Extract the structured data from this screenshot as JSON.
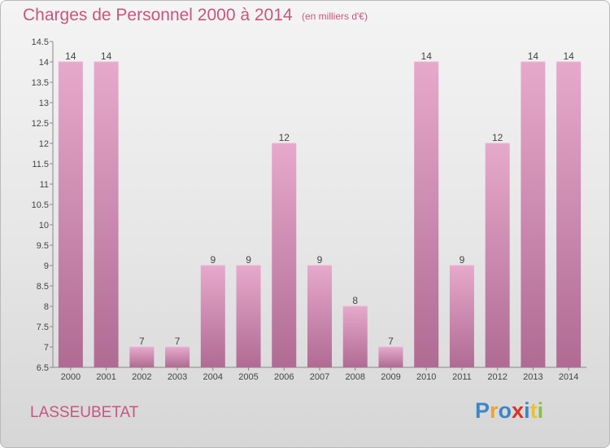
{
  "title": "Charges de Personnel 2000 à 2014",
  "subtitle": "(en milliers d'€)",
  "commune": "LASSEUBETAT",
  "logo": {
    "letters": [
      "P",
      "r",
      "o",
      "x",
      "i",
      "t",
      "i"
    ],
    "colors": [
      "#3b86c9",
      "#f0a32b",
      "#3b86c9",
      "#d9322a",
      "#3b86c9",
      "#e8c233",
      "#8cbf3f"
    ]
  },
  "colors": {
    "bar": "#d58fb6",
    "bar_dark": "#b06b93",
    "text_accent": "#c8557f"
  },
  "chart_data": {
    "type": "bar",
    "categories": [
      "2000",
      "2001",
      "2002",
      "2003",
      "2004",
      "2005",
      "2006",
      "2007",
      "2008",
      "2009",
      "2010",
      "2011",
      "2012",
      "2013",
      "2014"
    ],
    "values": [
      14,
      14,
      7,
      7,
      9,
      9,
      12,
      9,
      8,
      7,
      14,
      9,
      12,
      14,
      14
    ],
    "ylim": [
      6.5,
      14.5
    ],
    "yticks": [
      "6.5",
      "7",
      "7.5",
      "8",
      "8.5",
      "9",
      "9.5",
      "10",
      "10.5",
      "11",
      "11.5",
      "12",
      "12.5",
      "13",
      "13.5",
      "14",
      "14.5"
    ],
    "data_labels": [
      "14",
      "14",
      "7",
      "7",
      "9",
      "9",
      "12",
      "9",
      "8",
      "7",
      "14",
      "9",
      "12",
      "14",
      "14"
    ],
    "grid": false
  }
}
